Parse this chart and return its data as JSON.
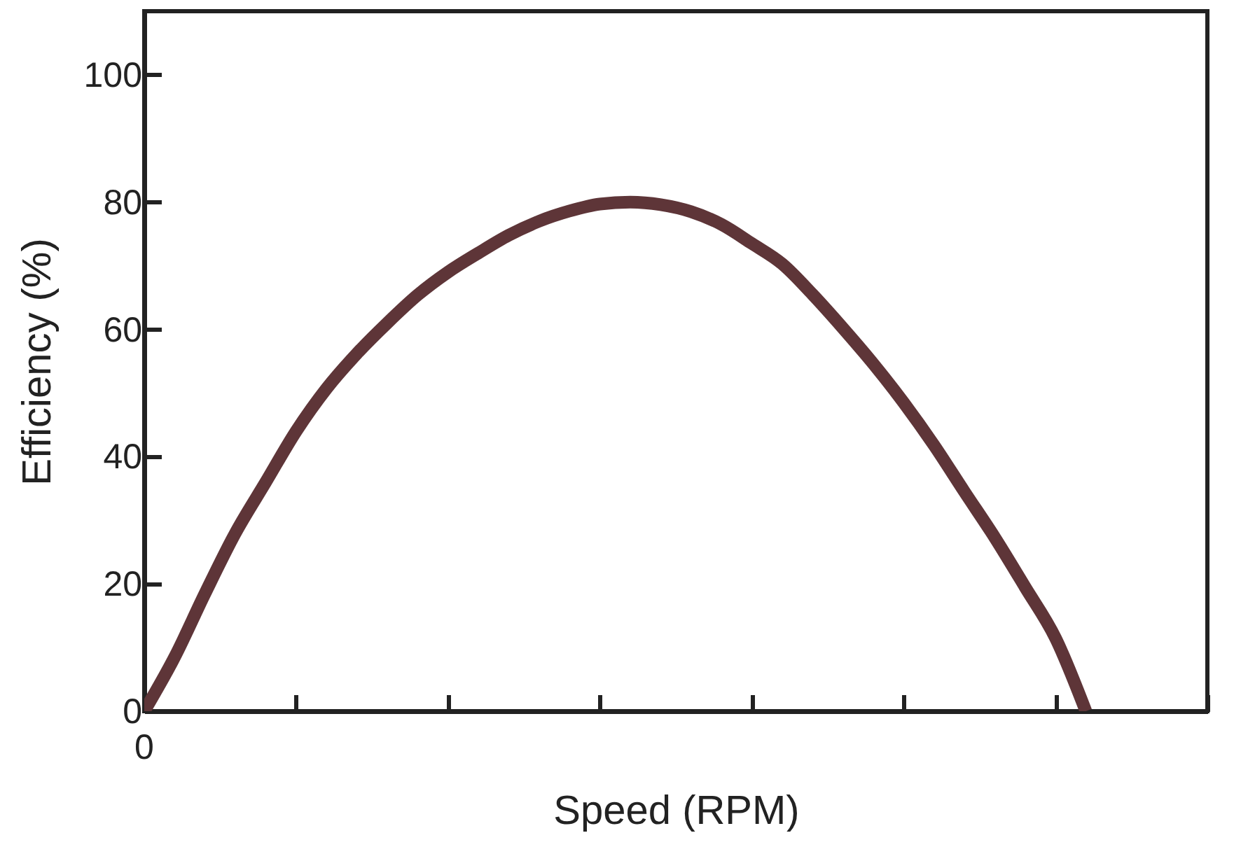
{
  "chart_data": {
    "type": "line",
    "relative": false,
    "xlabel": "Speed (RPM)",
    "ylabel": "Efficiency (%)",
    "categories": [
      null,
      null,
      null,
      null,
      null,
      null,
      null,
      null,
      null,
      null,
      null,
      null,
      null,
      null,
      null,
      null,
      null,
      null,
      null,
      null,
      null,
      null,
      null,
      null,
      null,
      null,
      null,
      null,
      null,
      null,
      null,
      null,
      null,
      null,
      null,
      null
    ],
    "series": [
      {
        "color": "#5e3538",
        "values": [
          0,
          8.5,
          18.5,
          28,
          36,
          44,
          50.7,
          56.2,
          61,
          65.4,
          69,
          72,
          74.8,
          77,
          78.6,
          79.7,
          80,
          79.6,
          78.5,
          76.5,
          73.5,
          70.3,
          65.5,
          60.2,
          54.6,
          48.5,
          41.8,
          34.5,
          27.3,
          19.5,
          11.5,
          0,
          null,
          null,
          null,
          null
        ]
      }
    ],
    "annotations": [
      "0"
    ],
    "ylim": [
      0,
      110
    ],
    "yticks": [
      0,
      20,
      40,
      60,
      80,
      100
    ],
    "grid": false,
    "marker": "none",
    "line_style": "solid"
  }
}
